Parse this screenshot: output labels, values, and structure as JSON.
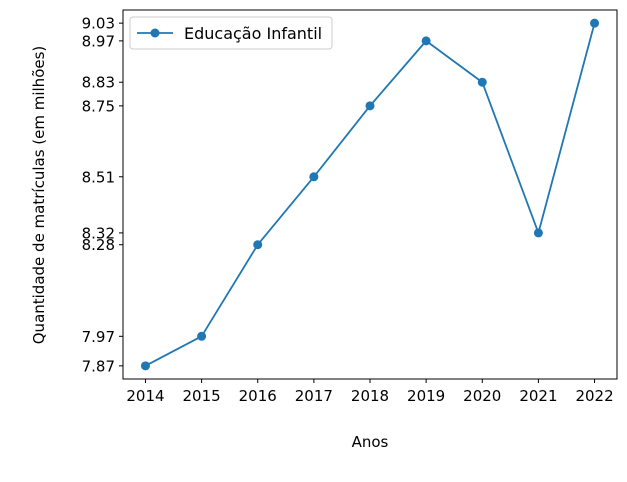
{
  "chart_data": {
    "type": "line",
    "title": "",
    "xlabel": "Anos",
    "ylabel": "Quantidade de matrículas (em milhões)",
    "x": [
      2014,
      2015,
      2016,
      2017,
      2018,
      2019,
      2020,
      2021,
      2022
    ],
    "series": [
      {
        "name": "Educação Infantil",
        "values": [
          7.87,
          7.97,
          8.28,
          8.51,
          8.75,
          8.97,
          8.83,
          8.32,
          9.03
        ],
        "color": "#1f77b4",
        "marker": "circle"
      }
    ],
    "xticks": [
      "2014",
      "2015",
      "2016",
      "2017",
      "2018",
      "2019",
      "2020",
      "2021",
      "2022"
    ],
    "yticks": [
      "7.87",
      "7.97",
      "8.28",
      "8.32",
      "8.51",
      "8.75",
      "8.83",
      "8.97",
      "9.03"
    ],
    "ylim": [
      7.8255,
      9.0745
    ],
    "grid": false,
    "legend_position": "top-left"
  }
}
